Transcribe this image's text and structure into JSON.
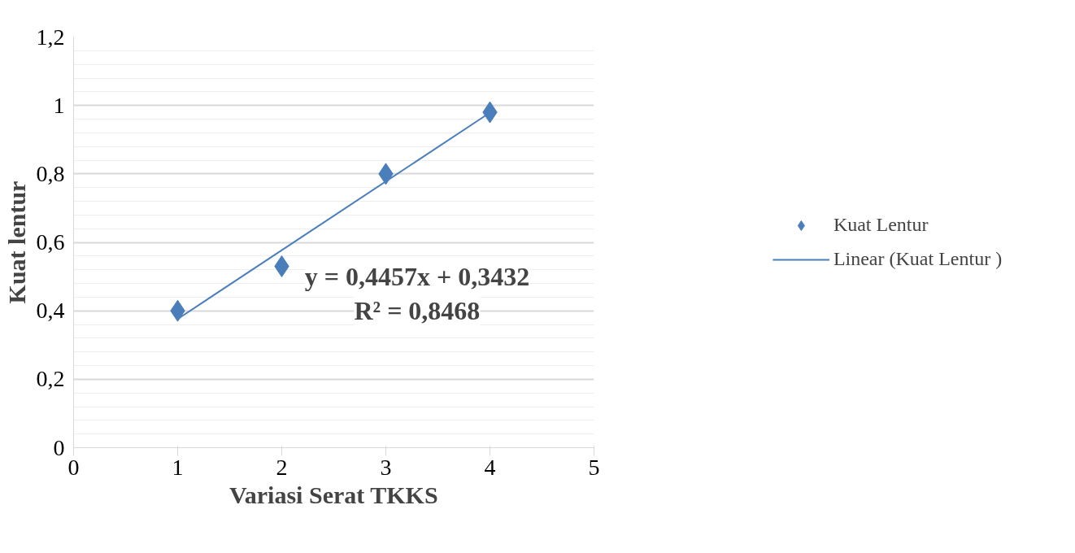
{
  "chart_data": {
    "type": "scatter",
    "xlabel": "Variasi Serat TKKS",
    "ylabel": "Kuat lentur",
    "series": [
      {
        "name": "Kuat Lentur",
        "color": "#4a7ebb",
        "marker": "diamond",
        "x": [
          1,
          2,
          3,
          4
        ],
        "values": [
          0.4,
          0.53,
          0.8,
          0.98
        ]
      },
      {
        "name": "Linear (Kuat Lentur )",
        "type": "line",
        "color": "#4a7ebb",
        "line_style": "solid",
        "x": [
          1,
          4
        ],
        "values": [
          0.376,
          0.979
        ]
      }
    ],
    "annotations": [
      "y = 0,4457x + 0,3432",
      "R² = 0,8468"
    ],
    "xlim": [
      0,
      5
    ],
    "xticks": [
      0,
      1,
      2,
      3,
      4,
      5
    ],
    "ylim": [
      0,
      1.2
    ],
    "yticks": [
      0,
      {
        "value": 0.2,
        "label": "0,2"
      },
      {
        "value": 0.4,
        "label": "0,4"
      },
      {
        "value": 0.6,
        "label": "0,6"
      },
      {
        "value": 0.8,
        "label": "0,8"
      },
      1,
      {
        "value": 1.2,
        "label": "1,2"
      }
    ],
    "grid": "y",
    "legend": "right"
  }
}
